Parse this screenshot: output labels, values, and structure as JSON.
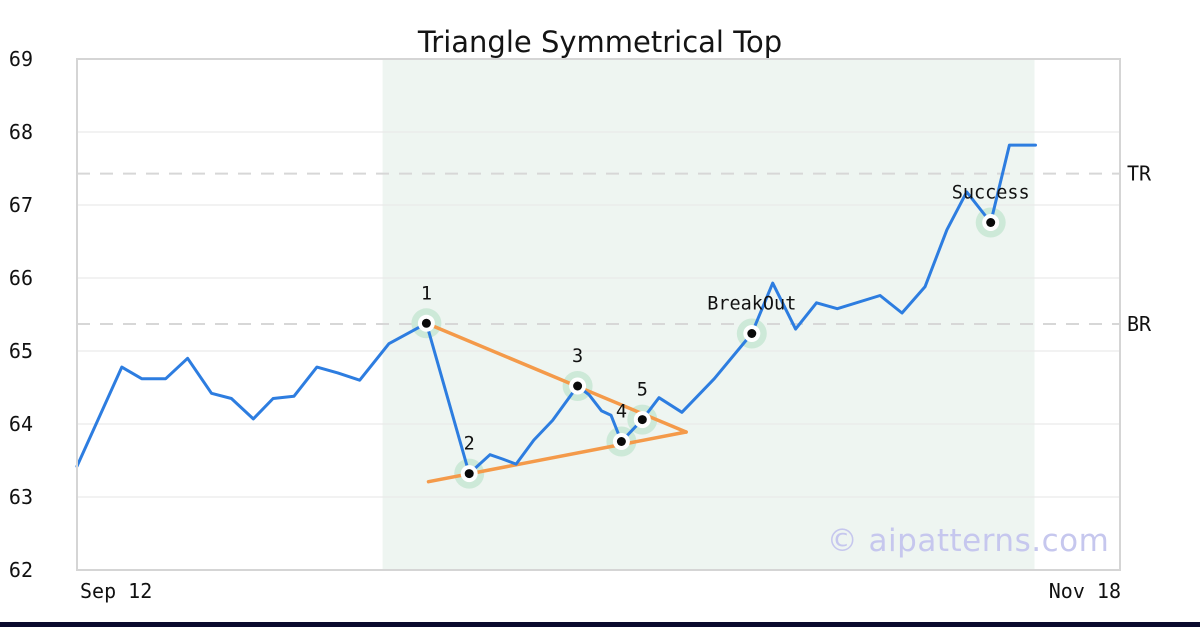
{
  "page": {
    "title": "Triangle Symmetrical Top",
    "watermark": "© aipatterns.com"
  },
  "chart_data": {
    "type": "line",
    "title": "Triangle Symmetrical Top",
    "pattern": "symmetrical triangle top with breakout",
    "x_axis": {
      "left_label": "Sep 12",
      "right_label": "Nov 18"
    },
    "ylim": [
      62,
      69
    ],
    "yticks": [
      62,
      63,
      64,
      65,
      66,
      67,
      68,
      69
    ],
    "grid": "horizontal",
    "legend": "none",
    "levels": [
      {
        "label": "TR",
        "value": 67.43
      },
      {
        "label": "BR",
        "value": 65.37
      }
    ],
    "shade_span": [
      0.293,
      0.918
    ],
    "series": [
      {
        "name": "price",
        "points": [
          [
            0.0,
            63.42
          ],
          [
            0.043,
            64.78
          ],
          [
            0.062,
            64.62
          ],
          [
            0.085,
            64.62
          ],
          [
            0.106,
            64.9
          ],
          [
            0.129,
            64.42
          ],
          [
            0.148,
            64.35
          ],
          [
            0.169,
            64.07
          ],
          [
            0.188,
            64.35
          ],
          [
            0.208,
            64.38
          ],
          [
            0.23,
            64.78
          ],
          [
            0.25,
            64.7
          ],
          [
            0.271,
            64.6
          ],
          [
            0.299,
            65.1
          ],
          [
            0.335,
            65.38
          ],
          [
            0.376,
            63.32
          ],
          [
            0.396,
            63.58
          ],
          [
            0.408,
            63.52
          ],
          [
            0.421,
            63.45
          ],
          [
            0.438,
            63.78
          ],
          [
            0.456,
            64.05
          ],
          [
            0.48,
            64.52
          ],
          [
            0.491,
            64.4
          ],
          [
            0.503,
            64.18
          ],
          [
            0.512,
            64.12
          ],
          [
            0.522,
            63.76
          ],
          [
            0.542,
            64.06
          ],
          [
            0.558,
            64.36
          ],
          [
            0.58,
            64.16
          ],
          [
            0.611,
            64.62
          ],
          [
            0.647,
            65.24
          ],
          [
            0.667,
            65.93
          ],
          [
            0.689,
            65.3
          ],
          [
            0.709,
            65.66
          ],
          [
            0.729,
            65.58
          ],
          [
            0.77,
            65.76
          ],
          [
            0.791,
            65.52
          ],
          [
            0.813,
            65.88
          ],
          [
            0.834,
            66.66
          ],
          [
            0.853,
            67.18
          ],
          [
            0.876,
            66.76
          ],
          [
            0.894,
            67.82
          ],
          [
            0.919,
            67.82
          ]
        ]
      }
    ],
    "trendlines": [
      {
        "name": "upper",
        "from": [
          0.335,
          65.38
        ],
        "to": [
          0.584,
          63.89
        ]
      },
      {
        "name": "lower",
        "from": [
          0.337,
          63.21
        ],
        "to": [
          0.584,
          63.89
        ]
      }
    ],
    "markers": [
      {
        "label": "1",
        "x": 0.335,
        "y": 65.38
      },
      {
        "label": "2",
        "x": 0.376,
        "y": 63.32
      },
      {
        "label": "3",
        "x": 0.48,
        "y": 64.52
      },
      {
        "label": "4",
        "x": 0.522,
        "y": 63.76
      },
      {
        "label": "5",
        "x": 0.542,
        "y": 64.06
      },
      {
        "label": "BreakOut",
        "x": 0.647,
        "y": 65.24
      },
      {
        "label": "Success",
        "x": 0.876,
        "y": 66.76
      }
    ],
    "colors": {
      "price": "#2d7de0",
      "trendline": "#f49a4a",
      "shade": "#eef5f1",
      "halo": "#cde9d8",
      "dashed_level": "#d7d7d7",
      "gridline": "#e9e9e9",
      "frame": "#d5d5d5",
      "text": "#111111",
      "watermark": "#c6c7ee",
      "bottom_bar": "#0a0a2e"
    }
  }
}
